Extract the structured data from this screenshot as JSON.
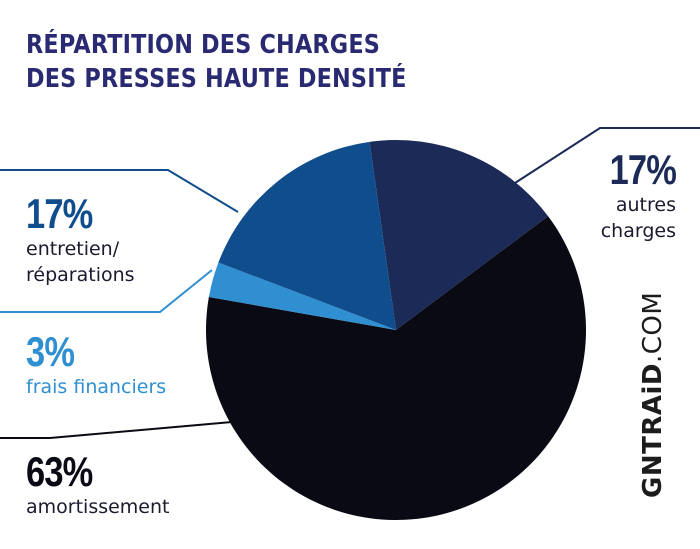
{
  "title": {
    "line1": "RÉPARTITION DES CHARGES",
    "line2": "DES PRESSES HAUTE DENSITÉ"
  },
  "chart_data": {
    "type": "pie",
    "title": "RÉPARTITION DES CHARGES DES PRESSES HAUTE DENSITÉ",
    "slices": [
      {
        "label": "autres charges",
        "value": 17,
        "percent_label": "17%",
        "color": "#1b2a57"
      },
      {
        "label": "amortissement",
        "value": 63,
        "percent_label": "63%",
        "color": "#0a0a14"
      },
      {
        "label": "frais financiers",
        "value": 3,
        "percent_label": "3%",
        "color": "#2f8fd1"
      },
      {
        "label": "entretien/ réparations",
        "value": 17,
        "percent_label": "17%",
        "color": "#0f4d8c"
      }
    ],
    "start_angle_deg": -8,
    "direction": "clockwise"
  },
  "labels": {
    "autres_pct": "17%",
    "autres_desc_1": "autres",
    "autres_desc_2": "charges",
    "entretien_pct": "17%",
    "entretien_desc_1": "entretien/",
    "entretien_desc_2": "réparations",
    "frais_pct": "3%",
    "frais_desc": "frais financiers",
    "amort_pct": "63%",
    "amort_desc": "amortissement"
  },
  "colors": {
    "title": "#2a2a72",
    "autres_line": "#1b2a57",
    "entretien_text": "#0f4d8c",
    "frais_text": "#2f8fd1",
    "amort_text": "#0a0a14"
  },
  "watermark": {
    "bold": "GNTRAiD",
    "light": ".COM"
  }
}
